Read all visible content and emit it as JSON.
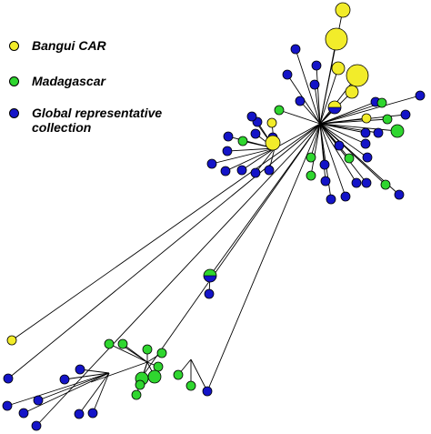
{
  "legend": {
    "items": [
      {
        "key": "car",
        "label": "Bangui CAR",
        "color": "#f2ec2a"
      },
      {
        "key": "mad",
        "label": "Madagascar",
        "color": "#2fd62f"
      },
      {
        "key": "glob",
        "label": "Global representative\ncollection",
        "color": "#1414c8"
      }
    ]
  }
}
